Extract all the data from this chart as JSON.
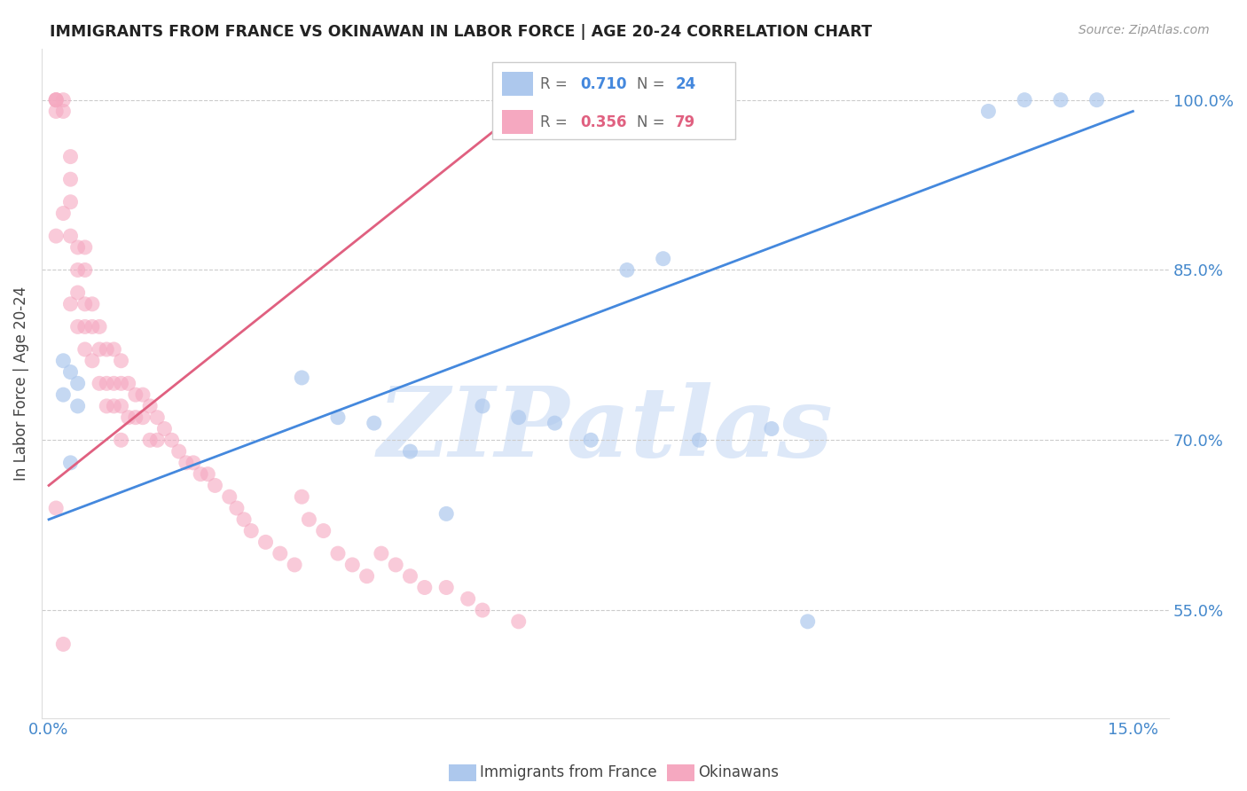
{
  "title": "IMMIGRANTS FROM FRANCE VS OKINAWAN IN LABOR FORCE | AGE 20-24 CORRELATION CHART",
  "source": "Source: ZipAtlas.com",
  "ylabel": "In Labor Force | Age 20-24",
  "xlim": [
    -0.001,
    0.155
  ],
  "ylim": [
    0.455,
    1.045
  ],
  "ytick_vals": [
    0.55,
    0.7,
    0.85,
    1.0
  ],
  "ytick_labels": [
    "55.0%",
    "70.0%",
    "85.0%",
    "100.0%"
  ],
  "blue_R": "0.710",
  "blue_N": "24",
  "pink_R": "0.356",
  "pink_N": "79",
  "blue_color": "#adc8ed",
  "pink_color": "#f5a8c0",
  "blue_line_color": "#4488dd",
  "pink_line_color": "#e06080",
  "watermark": "ZIPatlas",
  "watermark_color": "#dde8f8",
  "blue_scatter_x": [
    0.002,
    0.002,
    0.003,
    0.003,
    0.004,
    0.004,
    0.035,
    0.04,
    0.045,
    0.05,
    0.055,
    0.06,
    0.065,
    0.07,
    0.075,
    0.08,
    0.085,
    0.09,
    0.1,
    0.105,
    0.13,
    0.135,
    0.14,
    0.145
  ],
  "blue_scatter_y": [
    0.77,
    0.74,
    0.76,
    0.68,
    0.75,
    0.73,
    0.755,
    0.72,
    0.715,
    0.69,
    0.635,
    0.73,
    0.72,
    0.715,
    0.7,
    0.85,
    0.86,
    0.7,
    0.71,
    0.54,
    0.99,
    1.0,
    1.0,
    1.0
  ],
  "pink_scatter_x": [
    0.001,
    0.001,
    0.001,
    0.001,
    0.001,
    0.002,
    0.002,
    0.002,
    0.003,
    0.003,
    0.003,
    0.003,
    0.003,
    0.004,
    0.004,
    0.004,
    0.004,
    0.005,
    0.005,
    0.005,
    0.005,
    0.005,
    0.006,
    0.006,
    0.006,
    0.007,
    0.007,
    0.007,
    0.008,
    0.008,
    0.008,
    0.009,
    0.009,
    0.009,
    0.01,
    0.01,
    0.01,
    0.01,
    0.011,
    0.011,
    0.012,
    0.012,
    0.013,
    0.013,
    0.014,
    0.014,
    0.015,
    0.015,
    0.016,
    0.017,
    0.018,
    0.019,
    0.02,
    0.021,
    0.022,
    0.023,
    0.025,
    0.026,
    0.027,
    0.028,
    0.03,
    0.032,
    0.034,
    0.035,
    0.036,
    0.038,
    0.04,
    0.042,
    0.044,
    0.046,
    0.048,
    0.05,
    0.052,
    0.055,
    0.058,
    0.06,
    0.065,
    0.001,
    0.002
  ],
  "pink_scatter_y": [
    1.0,
    1.0,
    1.0,
    0.99,
    0.88,
    1.0,
    0.99,
    0.9,
    0.95,
    0.93,
    0.91,
    0.88,
    0.82,
    0.87,
    0.85,
    0.83,
    0.8,
    0.87,
    0.85,
    0.82,
    0.8,
    0.78,
    0.82,
    0.8,
    0.77,
    0.8,
    0.78,
    0.75,
    0.78,
    0.75,
    0.73,
    0.78,
    0.75,
    0.73,
    0.77,
    0.75,
    0.73,
    0.7,
    0.75,
    0.72,
    0.74,
    0.72,
    0.74,
    0.72,
    0.73,
    0.7,
    0.72,
    0.7,
    0.71,
    0.7,
    0.69,
    0.68,
    0.68,
    0.67,
    0.67,
    0.66,
    0.65,
    0.64,
    0.63,
    0.62,
    0.61,
    0.6,
    0.59,
    0.65,
    0.63,
    0.62,
    0.6,
    0.59,
    0.58,
    0.6,
    0.59,
    0.58,
    0.57,
    0.57,
    0.56,
    0.55,
    0.54,
    0.64,
    0.52
  ],
  "blue_line_x": [
    0.0,
    0.15
  ],
  "blue_line_y": [
    0.63,
    0.99
  ],
  "pink_line_x": [
    0.0,
    0.065
  ],
  "pink_line_y": [
    0.66,
    0.99
  ]
}
